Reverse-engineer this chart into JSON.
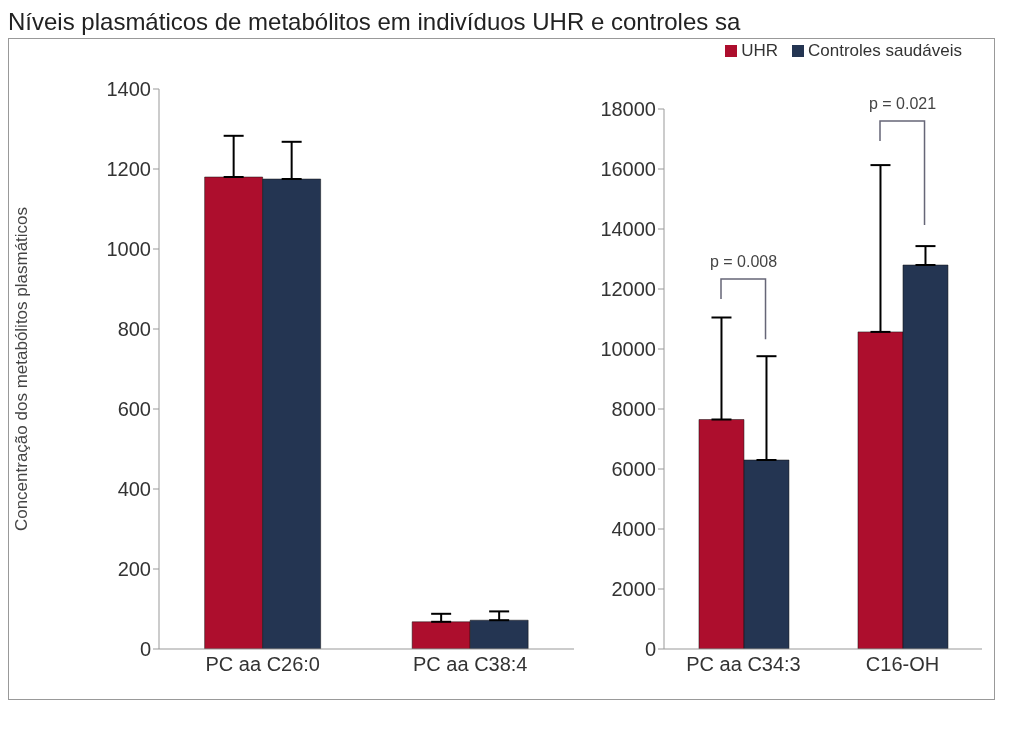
{
  "chart_data": [
    {
      "type": "bar",
      "title": "Níveis plasmáticos de metabólitos em indivíduos UHR e controles sa",
      "ylabel": "Concentração dos metabólitos plasmáticos",
      "categories": [
        "PC aa C26:0",
        "PC aa C38:4"
      ],
      "ylim": [
        0,
        1400
      ],
      "yticks": [
        0,
        200,
        400,
        600,
        800,
        1000,
        1200,
        1400
      ],
      "grid": false,
      "legend": false,
      "series": [
        {
          "color": "#ad0e2d",
          "values": [
            1180,
            68
          ],
          "errors": [
            [
              1180,
              1283
            ],
            [
              68,
              88
            ]
          ]
        },
        {
          "color": "#243552",
          "values": [
            1175,
            72
          ],
          "errors": [
            [
              1175,
              1268
            ],
            [
              72,
              94
            ]
          ]
        }
      ]
    },
    {
      "type": "bar",
      "categories": [
        "PC aa C34:3",
        "C16-OH"
      ],
      "ylim": [
        0,
        18000
      ],
      "yticks": [
        0,
        2000,
        4000,
        6000,
        8000,
        10000,
        12000,
        14000,
        16000,
        18000
      ],
      "grid": false,
      "legend": "top right",
      "annotations": [
        "p = 0.008",
        "p = 0.021"
      ],
      "series": [
        {
          "name": "UHR",
          "color": "#ad0e2d",
          "values": [
            7650,
            10570
          ],
          "errors": [
            [
              7650,
              11050
            ],
            [
              10570,
              16130
            ]
          ]
        },
        {
          "name": "Controles saudáveis",
          "color": "#243552",
          "values": [
            6300,
            12800
          ],
          "errors": [
            [
              6300,
              9760
            ],
            [
              12800,
              13430
            ]
          ]
        }
      ]
    }
  ]
}
